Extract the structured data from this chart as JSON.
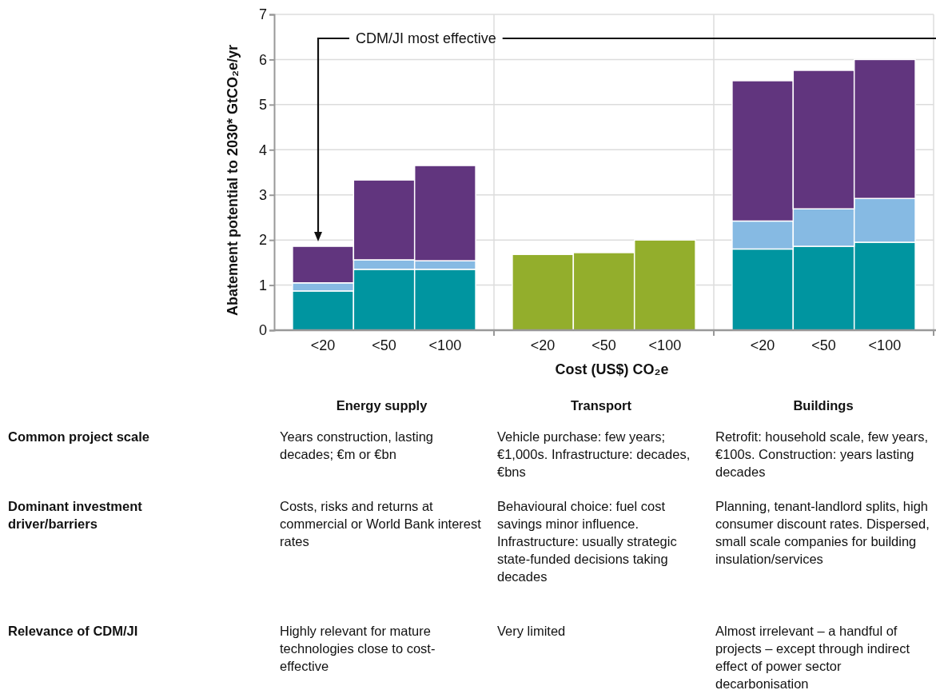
{
  "chart_data": {
    "type": "bar",
    "stacked": true,
    "xlabel": "Cost (US$) CO₂e",
    "ylabel": "Abatement potential to 2030* GtCO₂e/yr",
    "categories": [
      "<20",
      "<50",
      "<100",
      null,
      "<20",
      "<50",
      "<100",
      null,
      "<20",
      "<50",
      "<100"
    ],
    "series": [
      {
        "color": "#0095a0",
        "values": [
          0.87,
          1.35,
          1.35,
          null,
          null,
          null,
          null,
          null,
          1.8,
          1.86,
          1.95
        ]
      },
      {
        "color": "#86bae3",
        "values": [
          0.18,
          0.21,
          0.19,
          null,
          null,
          null,
          null,
          null,
          0.62,
          0.83,
          0.97
        ]
      },
      {
        "color": "#61357e",
        "values": [
          0.81,
          1.77,
          2.11,
          null,
          null,
          null,
          null,
          null,
          3.11,
          3.07,
          3.08
        ]
      },
      {
        "color": "#93ae2c",
        "values": [
          null,
          null,
          null,
          null,
          1.68,
          1.72,
          2.0,
          null,
          null,
          null,
          null
        ]
      }
    ],
    "ylim": [
      0,
      7
    ],
    "yticks": [
      0,
      1,
      2,
      3,
      4,
      5,
      6,
      7
    ],
    "grid": true,
    "annotations": [
      "CDM/JI most effective",
      "Energy supply",
      "Transport",
      "Buildings",
      "Common project scale",
      "Years construction, lasting decades; €m or €bn",
      "Vehicle purchase: few years; €1,000s. Infrastructure: decades, €bns",
      "Retrofit: household scale, few years, €100s. Construction: years lasting decades",
      "Dominant investment driver/barriers",
      "Costs, risks and returns at commercial or World Bank interest rates",
      "Behavioural choice: fuel cost savings minor influence. Infrastructure: usually strategic state-funded decisions taking decades",
      "Planning, tenant-landlord splits, high consumer discount rates. Dispersed, small scale companies for building insulation/services",
      "Relevance of CDM/JI",
      "Highly relevant for mature technologies close to cost-effective",
      "Very limited",
      "Almost irrelevant – a handful of projects – except through indirect effect of power sector decarbonisation"
    ]
  }
}
